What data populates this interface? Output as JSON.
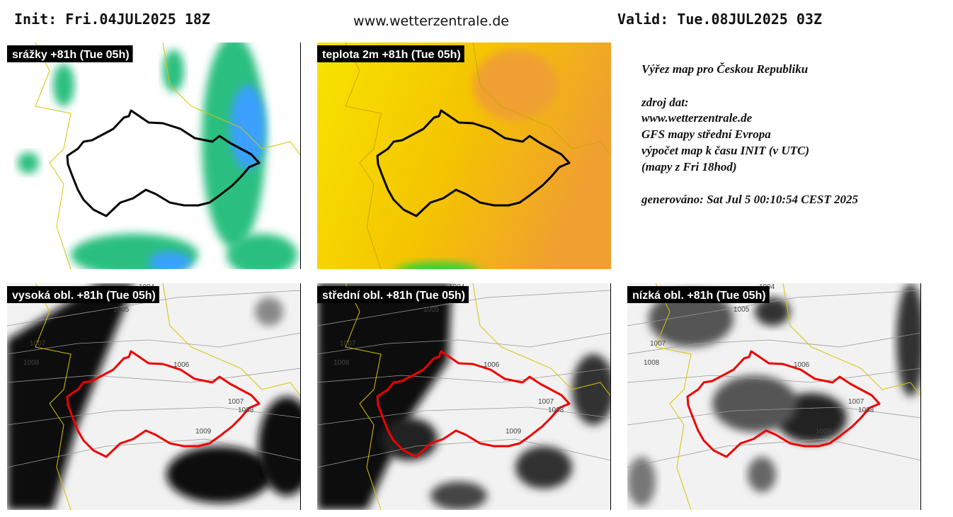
{
  "header": {
    "init": "Init: Fri.04JUL2025 18Z",
    "site": "www.wetterzentrale.de",
    "valid": "Valid: Tue.08JUL2025 03Z"
  },
  "panels": [
    {
      "label": "srážky +81h (Tue 05h)"
    },
    {
      "label": "teplota 2m +81h (Tue 05h)"
    },
    {
      "label": "vysoká obl. +81h (Tue 05h)",
      "isobar_labels": [
        "1004",
        "1005",
        "1007",
        "1008",
        "1006",
        "1007",
        "1008",
        "1009"
      ]
    },
    {
      "label": "střední obl. +81h (Tue 05h)",
      "isobar_labels": [
        "1004",
        "1005",
        "1007",
        "1008",
        "1006",
        "1007",
        "1008",
        "1009"
      ]
    },
    {
      "label": "nízká obl. +81h (Tue 05h)",
      "isobar_labels": [
        "1004",
        "1005",
        "1007",
        "1008",
        "1006",
        "1007",
        "1008",
        "1009"
      ]
    }
  ],
  "info": {
    "lines": [
      "Výřez map pro Českou Republiku",
      "zdroj dat:",
      "www.wetterzentrale.de",
      "GFS mapy střední Evropa",
      "výpočet map k času INIT (v UTC)",
      "(mapy z Fri 18hod)",
      "generováno: Sat Jul  5 00:10:54 CEST 2025"
    ]
  }
}
